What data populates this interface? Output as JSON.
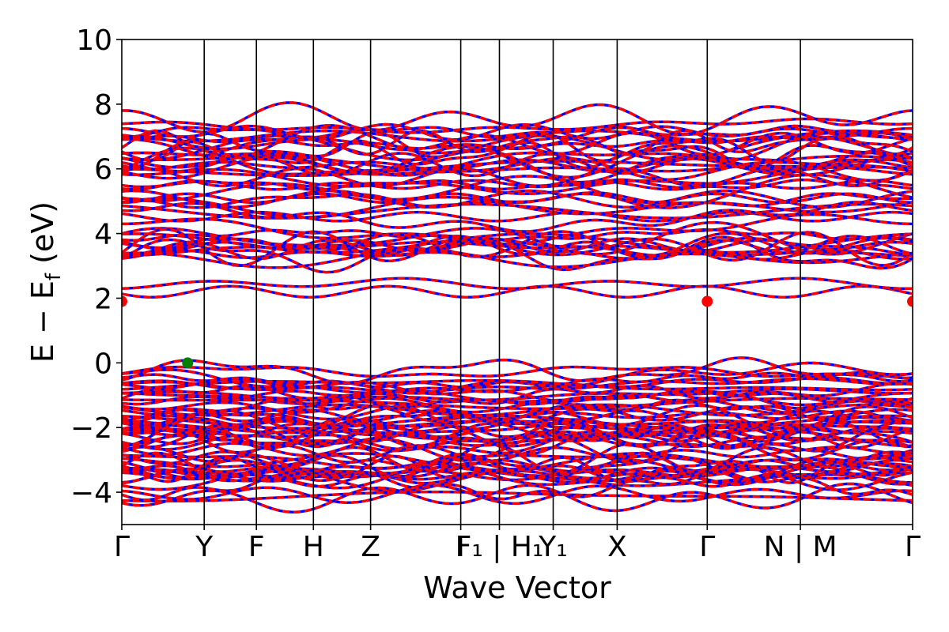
{
  "chart_data": {
    "type": "line",
    "title": "",
    "xlabel": "Wave Vector",
    "ylabel_main": "E − E",
    "ylabel_sub": "f",
    "ylabel_unit": " (eV)",
    "ylim": [
      -5,
      10
    ],
    "yticks": [
      -4,
      -2,
      0,
      2,
      4,
      6,
      8,
      10
    ],
    "ytick_labels": [
      "−4",
      "−2",
      "0",
      "2",
      "4",
      "6",
      "8",
      "10"
    ],
    "k_path": [
      {
        "label": "Γ",
        "k": 0.0
      },
      {
        "label": "Y",
        "k": 0.1042
      },
      {
        "label": "F",
        "k": 0.1702
      },
      {
        "label": "H",
        "k": 0.2423
      },
      {
        "label": "Z",
        "k": 0.3146
      },
      {
        "label": "I",
        "k": 0.4286
      },
      {
        "label": "F₁ | H₁",
        "k": 0.4775
      },
      {
        "label": "Y₁",
        "k": 0.5455
      },
      {
        "label": "X",
        "k": 0.6264
      },
      {
        "label": "Γ",
        "k": 0.7403
      },
      {
        "label": "N | M",
        "k": 0.8581
      },
      {
        "label": "Γ",
        "k": 1.0
      }
    ],
    "grid": false,
    "legend": "none",
    "band_colors": {
      "spin_up": "#ff0000",
      "spin_down": "#0000ff"
    },
    "conduction_band_minimum": {
      "energy_eV": 1.9,
      "k": [
        0.0,
        0.7403,
        1.0
      ],
      "color": "#ff0000"
    },
    "valence_band_maximum": {
      "energy_eV": 0.0,
      "k": [
        0.0833
      ],
      "color": "#008000"
    },
    "valence_band_range_eV": [
      -4.8,
      0.0
    ],
    "conduction_band_range_eV": [
      1.9,
      7.8
    ],
    "band_gap_eV": 1.9
  }
}
